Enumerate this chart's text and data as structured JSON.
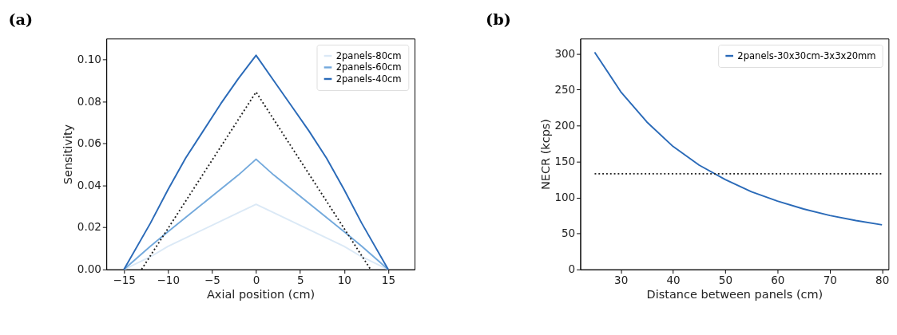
{
  "chart_data": [
    {
      "type": "line",
      "title": "(a)",
      "xlabel": "Axial position (cm)",
      "ylabel": "Sensitivity",
      "xlim": [
        -17,
        18
      ],
      "ylim": [
        0,
        0.11
      ],
      "xticks": [
        -15,
        -10,
        -5,
        0,
        5,
        10,
        15
      ],
      "yticks": [
        {
          "value": 0,
          "label": "0.00"
        },
        {
          "value": 0.02,
          "label": "0.02"
        },
        {
          "value": 0.04,
          "label": "0.04"
        },
        {
          "value": 0.06,
          "label": "0.06"
        },
        {
          "value": 0.08,
          "label": "0.08"
        },
        {
          "value": 0.1,
          "label": "0.10"
        }
      ],
      "grid": false,
      "legend": "top right",
      "marker": "none",
      "series": [
        {
          "name": "2panels-80cm",
          "color": "#dbe9f6",
          "line_style": "solid",
          "x": [
            -15,
            -12,
            -10,
            -2,
            0,
            2,
            10,
            12,
            15
          ],
          "values": [
            0,
            0.006,
            0.011,
            0.027,
            0.031,
            0.027,
            0.011,
            0.006,
            0
          ]
        },
        {
          "name": "2panels-60cm",
          "color": "#73a9dc",
          "line_style": "solid",
          "x": [
            -15,
            -12,
            -10,
            -2,
            0,
            2,
            10,
            12,
            15
          ],
          "values": [
            0,
            0.011,
            0.018,
            0.045,
            0.0525,
            0.045,
            0.018,
            0.011,
            0
          ]
        },
        {
          "name": "2panels-40cm",
          "color": "#2a6ab8",
          "line_style": "solid",
          "x": [
            -15,
            -12,
            -10,
            -8,
            -6,
            -4,
            -2,
            0,
            2,
            4,
            6,
            8,
            10,
            12,
            15
          ],
          "values": [
            0,
            0.022,
            0.038,
            0.053,
            0.066,
            0.079,
            0.091,
            0.102,
            0.09,
            0.078,
            0.066,
            0.053,
            0.038,
            0.022,
            0
          ]
        },
        {
          "color": "#222222",
          "line_style": "dotted",
          "x": [
            -13,
            0,
            13
          ],
          "values": [
            0,
            0.0845,
            0
          ]
        }
      ]
    },
    {
      "type": "line",
      "title": "(b)",
      "xlabel": "Distance between panels (cm)",
      "ylabel": "NECR (kcps)",
      "xlim": [
        22.25,
        81.25
      ],
      "ylim": [
        0,
        321
      ],
      "xticks": [
        30,
        40,
        50,
        60,
        70,
        80
      ],
      "yticks": [
        0,
        50,
        100,
        150,
        200,
        250,
        300
      ],
      "grid": false,
      "legend": "top right",
      "marker": "none",
      "series": [
        {
          "name": "2panels-30x30cm-3x3x20mm",
          "color": "#2a6ab8",
          "line_style": "solid",
          "x": [
            25,
            30,
            35,
            40,
            45,
            50,
            55,
            60,
            65,
            70,
            75,
            80
          ],
          "values": [
            302,
            247,
            205,
            171,
            145,
            125,
            108,
            95,
            84,
            75,
            68,
            62
          ]
        },
        {
          "color": "#222222",
          "line_style": "dotted",
          "x": [
            25,
            80
          ],
          "values": [
            133,
            133
          ]
        }
      ]
    }
  ]
}
